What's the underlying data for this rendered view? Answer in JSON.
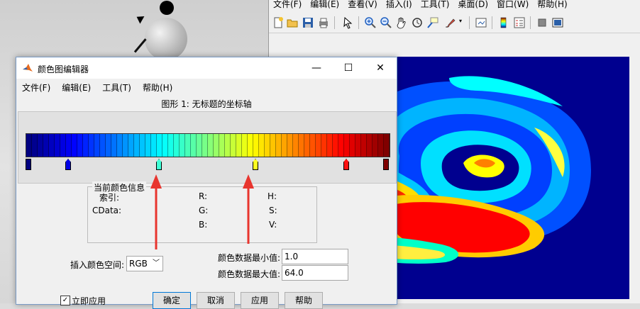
{
  "figure": {
    "menu": [
      "文件(F)",
      "编辑(E)",
      "查看(V)",
      "插入(I)",
      "工具(T)",
      "桌面(D)",
      "窗口(W)",
      "帮助(H)"
    ],
    "toolbar_icons": [
      "new-figure-icon",
      "open-icon",
      "save-icon",
      "print-icon",
      "pointer-icon",
      "zoom-in-icon",
      "zoom-out-icon",
      "pan-icon",
      "rotate-icon",
      "data-cursor-icon",
      "brush-icon",
      "link-icon",
      "colorbar-icon",
      "legend-icon",
      "hide-plot-tools-icon",
      "show-plot-tools-icon"
    ]
  },
  "editor": {
    "title": "颜色图编辑器",
    "window_controls": {
      "minimize": "—",
      "maximize": "☐",
      "close": "✕"
    },
    "menu": [
      "文件(F)",
      "编辑(E)",
      "工具(T)",
      "帮助(H)"
    ],
    "header": "图形 1: 无标题的坐标轴",
    "colormap_name": "jet",
    "colormap_size": 64,
    "markers": [
      {
        "index": 1,
        "color": "#000080"
      },
      {
        "index": 8,
        "color": "#0000e6"
      },
      {
        "index": 24,
        "color": "#40ffd6"
      },
      {
        "index": 41,
        "color": "#ffff20"
      },
      {
        "index": 57,
        "color": "#ff1010"
      },
      {
        "index": 64,
        "color": "#800000"
      }
    ],
    "current_color_info": {
      "legend": "当前颜色信息",
      "index_label": "索引:",
      "cdata_label": "CData:",
      "r_label": "R:",
      "g_label": "G:",
      "b_label": "B:",
      "h_label": "H:",
      "s_label": "S:",
      "v_label": "V:"
    },
    "insert_color_space_label": "插入颜色空间:",
    "color_space_value": "RGB",
    "min_label": "颜色数据最小值:",
    "min_value": "1.0",
    "max_label": "颜色数据最大值:",
    "max_value": "64.0",
    "apply_now_label": "立即应用",
    "apply_now_checked": true,
    "buttons": {
      "ok": "确定",
      "cancel": "取消",
      "apply": "应用",
      "help": "帮助"
    }
  },
  "colors": {
    "annotation_arrow": "#e8352e",
    "axes_background": "#00008f",
    "dialog_border": "#7a9cc7"
  }
}
